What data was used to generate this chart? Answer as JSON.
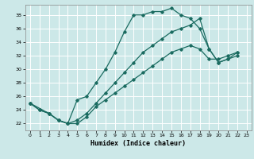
{
  "xlabel": "Humidex (Indice chaleur)",
  "bg_color": "#cce8e8",
  "line_color": "#1a6b60",
  "grid_color": "#b8d8d8",
  "xlim": [
    -0.5,
    23.5
  ],
  "ylim": [
    21.0,
    39.5
  ],
  "xticks": [
    0,
    1,
    2,
    3,
    4,
    5,
    6,
    7,
    8,
    9,
    10,
    11,
    12,
    13,
    14,
    15,
    16,
    17,
    18,
    19,
    20,
    21,
    22,
    23
  ],
  "yticks": [
    22,
    24,
    26,
    28,
    30,
    32,
    34,
    36,
    38
  ],
  "line1_x": [
    0,
    1,
    2,
    3,
    4,
    5,
    6,
    7,
    8,
    9,
    10,
    11,
    12,
    13,
    14,
    15,
    16,
    17,
    18,
    19,
    20,
    21,
    22
  ],
  "line1_y": [
    25,
    24,
    23.5,
    22.5,
    22,
    25.5,
    26,
    28,
    30,
    32.5,
    35.5,
    38,
    38,
    38.5,
    38.5,
    39,
    38,
    37.5,
    36,
    33,
    31,
    31.5,
    32
  ],
  "line2_x": [
    0,
    1,
    2,
    3,
    4,
    5,
    6,
    7,
    8,
    9,
    10,
    11,
    12,
    13,
    14,
    15,
    16,
    17,
    18,
    19,
    20,
    21,
    22
  ],
  "line2_y": [
    25,
    24,
    23.5,
    22.5,
    22,
    22,
    23,
    24.5,
    25.5,
    26.5,
    27.5,
    28.5,
    29.5,
    30.5,
    31.5,
    32.5,
    33.0,
    33.5,
    33.0,
    31.5,
    31.5,
    32,
    32.5
  ],
  "line3_x": [
    0,
    2,
    3,
    4,
    5,
    6,
    7,
    8,
    9,
    10,
    11,
    12,
    13,
    14,
    15,
    16,
    17,
    18,
    19,
    20,
    21,
    22
  ],
  "line3_y": [
    25,
    23.5,
    22.5,
    22.0,
    22.5,
    23.5,
    25,
    26.5,
    28,
    29.5,
    31,
    32.5,
    33.5,
    34.5,
    35.5,
    36.0,
    36.5,
    37.5,
    33.0,
    31.0,
    31.5,
    32.5
  ]
}
